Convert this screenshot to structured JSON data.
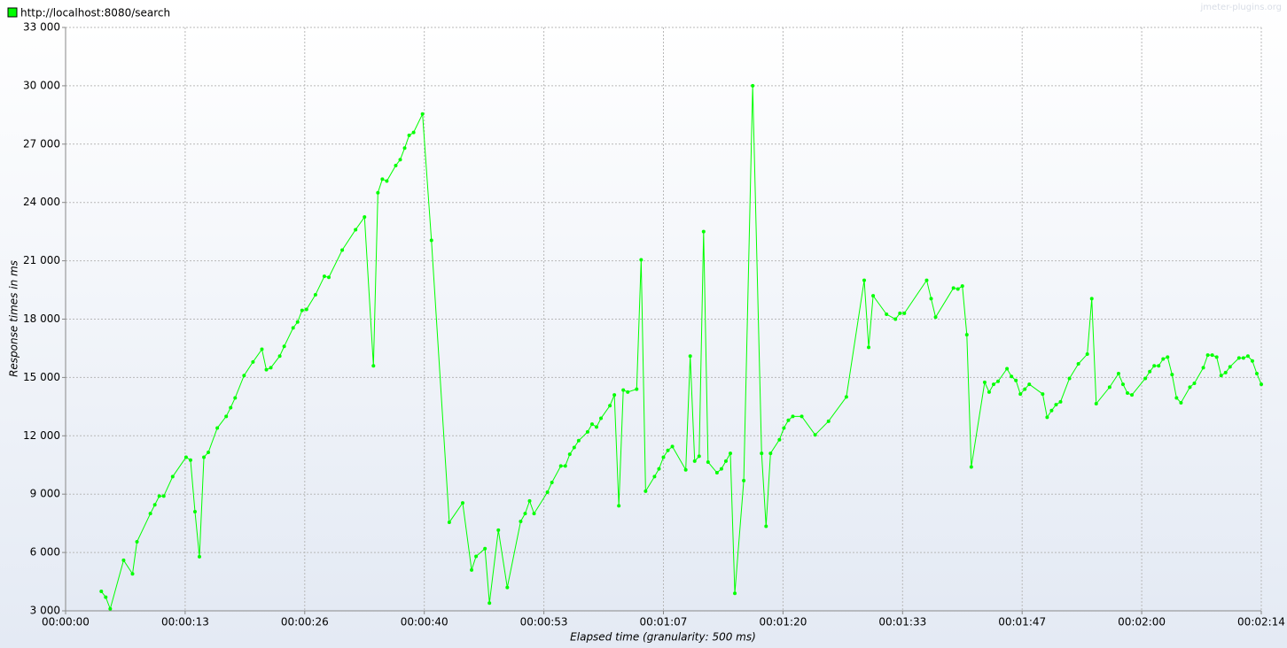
{
  "chart_data": {
    "type": "line",
    "x_label": "Elapsed time (granularity: 500 ms)",
    "y_label": "Response times in ms",
    "watermark": "jmeter-plugins.org",
    "grid": true,
    "legend_position": "top-left",
    "xlim": [
      0,
      134
    ],
    "ylim": [
      3000,
      33000
    ],
    "xticks": [
      {
        "value": 0,
        "label": "00:00:00"
      },
      {
        "value": 13.4,
        "label": "00:00:13"
      },
      {
        "value": 26.8,
        "label": "00:00:26"
      },
      {
        "value": 40.2,
        "label": "00:00:40"
      },
      {
        "value": 53.6,
        "label": "00:00:53"
      },
      {
        "value": 67,
        "label": "00:01:07"
      },
      {
        "value": 80.4,
        "label": "00:01:20"
      },
      {
        "value": 93.8,
        "label": "00:01:33"
      },
      {
        "value": 107.2,
        "label": "00:01:47"
      },
      {
        "value": 120.6,
        "label": "00:02:00"
      },
      {
        "value": 134,
        "label": "00:02:14"
      }
    ],
    "yticks": [
      {
        "value": 3000,
        "label": "3 000"
      },
      {
        "value": 6000,
        "label": "6 000"
      },
      {
        "value": 9000,
        "label": "9 000"
      },
      {
        "value": 12000,
        "label": "12 000"
      },
      {
        "value": 15000,
        "label": "15 000"
      },
      {
        "value": 18000,
        "label": "18 000"
      },
      {
        "value": 21000,
        "label": "21 000"
      },
      {
        "value": 24000,
        "label": "24 000"
      },
      {
        "value": 27000,
        "label": "27 000"
      },
      {
        "value": 30000,
        "label": "30 000"
      },
      {
        "value": 33000,
        "label": "33 000"
      }
    ],
    "x": [
      4.0,
      4.5,
      5.0,
      6.5,
      7.5,
      8.0,
      9.5,
      10.0,
      10.5,
      11.0,
      12.0,
      13.5,
      14.0,
      14.5,
      15.0,
      15.5,
      16.0,
      17.0,
      18.0,
      18.5,
      19.0,
      20.0,
      21.0,
      22.0,
      22.5,
      23.0,
      24.0,
      24.5,
      25.5,
      26.0,
      26.5,
      27.0,
      28.0,
      29.0,
      29.5,
      31.0,
      32.5,
      33.5,
      34.5,
      35.0,
      35.5,
      36.0,
      37.0,
      37.5,
      38.0,
      38.5,
      39.0,
      40.0,
      41.0,
      43.0,
      44.5,
      45.5,
      46.0,
      47.0,
      47.5,
      48.5,
      49.5,
      51.0,
      51.5,
      52.0,
      52.5,
      54.0,
      54.5,
      55.5,
      56.0,
      56.5,
      57.0,
      57.5,
      58.5,
      59.0,
      59.5,
      60.0,
      61.0,
      61.5,
      62.0,
      62.5,
      63.0,
      64.0,
      64.5,
      65.0,
      66.0,
      66.5,
      67.0,
      67.5,
      68.0,
      69.5,
      70.0,
      70.5,
      71.0,
      71.5,
      72.0,
      73.0,
      73.5,
      74.0,
      74.5,
      75.0,
      76.0,
      77.0,
      78.0,
      78.5,
      79.0,
      80.0,
      80.5,
      81.0,
      81.5,
      82.5,
      84.0,
      85.5,
      87.5,
      89.5,
      90.0,
      90.5,
      92.0,
      93.0,
      93.5,
      94.0,
      96.5,
      97.0,
      97.5,
      99.5,
      100.0,
      100.5,
      101.0,
      101.5,
      103.0,
      103.5,
      104.0,
      104.5,
      105.5,
      106.0,
      106.5,
      107.0,
      107.5,
      108.0,
      109.5,
      110.0,
      110.5,
      111.0,
      111.5,
      112.5,
      113.5,
      114.5,
      115.0,
      115.5,
      117.0,
      118.0,
      118.5,
      119.0,
      119.5,
      121.0,
      121.5,
      122.0,
      122.5,
      123.0,
      123.5,
      124.0,
      124.5,
      125.0,
      126.0,
      126.5,
      127.5,
      128.0,
      128.5,
      129.0,
      129.5,
      130.0,
      130.5,
      131.5,
      132.0,
      132.5,
      133.0,
      133.5,
      134.0
    ],
    "series": [
      {
        "name": "http://localhost:8080/search",
        "color": "#00ff00",
        "values": [
          4000,
          3700,
          3100,
          5600,
          4900,
          6550,
          8000,
          8450,
          8900,
          8900,
          9900,
          10900,
          10750,
          8100,
          5780,
          10900,
          11150,
          12400,
          13000,
          13450,
          13950,
          15100,
          15800,
          16450,
          15400,
          15500,
          16100,
          16600,
          17550,
          17850,
          18450,
          18500,
          19250,
          20200,
          20150,
          21550,
          22600,
          23250,
          15600,
          24500,
          25200,
          25100,
          25900,
          26200,
          26800,
          27450,
          27600,
          28550,
          22050,
          7550,
          8550,
          5100,
          5800,
          6200,
          3400,
          7150,
          4200,
          7600,
          8000,
          8650,
          8000,
          9100,
          9600,
          10450,
          10450,
          11050,
          11400,
          11750,
          12200,
          12600,
          12450,
          12900,
          13550,
          14100,
          8400,
          14350,
          14250,
          14400,
          21050,
          9150,
          9900,
          10300,
          10900,
          11250,
          11450,
          10250,
          16100,
          10700,
          10950,
          22500,
          10650,
          10100,
          10300,
          10700,
          11100,
          3900,
          9700,
          30000,
          11100,
          7350,
          11100,
          11800,
          12400,
          12800,
          13000,
          13000,
          12050,
          12750,
          14000,
          20000,
          16550,
          19200,
          18250,
          18000,
          18300,
          18300,
          20000,
          19050,
          18100,
          19600,
          19550,
          19700,
          17200,
          10400,
          14750,
          14250,
          14650,
          14800,
          15450,
          15050,
          14850,
          14150,
          14400,
          14650,
          14150,
          12950,
          13300,
          13600,
          13750,
          14950,
          15700,
          16200,
          19050,
          13650,
          14500,
          15200,
          14650,
          14200,
          14100,
          14950,
          15300,
          15600,
          15600,
          15950,
          16050,
          15150,
          13950,
          13700,
          14500,
          14700,
          15500,
          16150,
          16150,
          16050,
          15100,
          15250,
          15550,
          16000,
          16000,
          16100,
          15850,
          15200,
          14650
        ]
      }
    ]
  }
}
